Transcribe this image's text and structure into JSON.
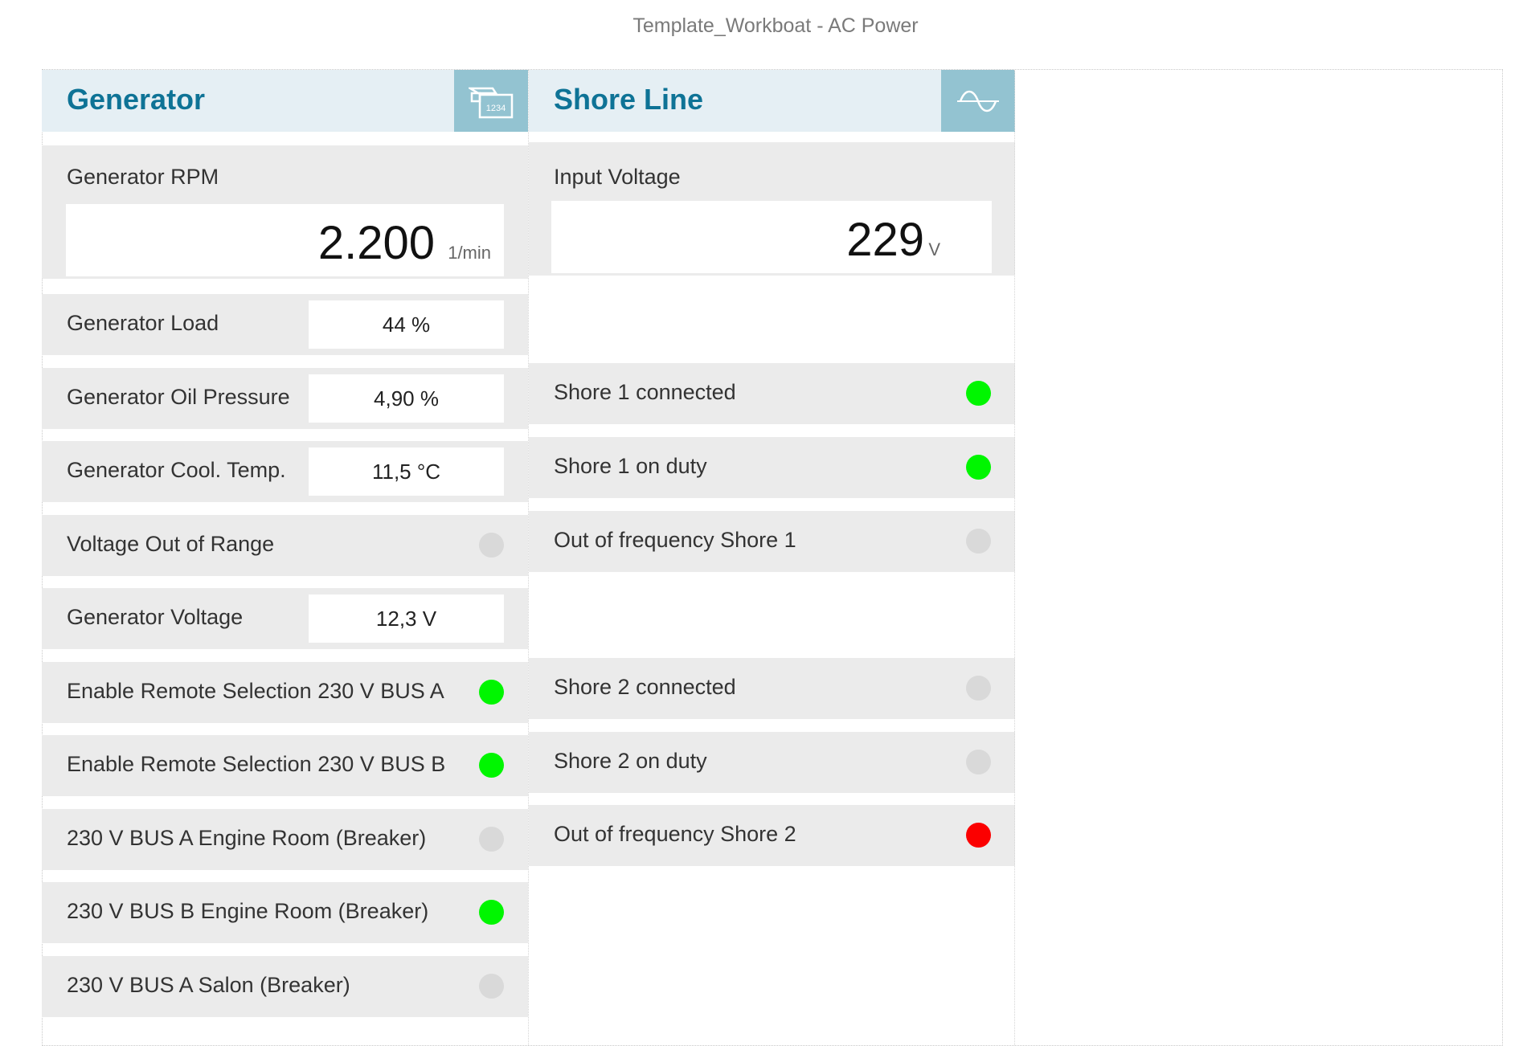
{
  "window": {
    "title": "Template_Workboat - AC Power"
  },
  "colors": {
    "header_bg": "#e5eff4",
    "title_text": "#0e7396",
    "icon_bg": "#93c3d1",
    "row_bg": "#ebebeb",
    "led_on": "#00f600",
    "led_off": "#d9d9d9",
    "led_alarm": "#fb0000"
  },
  "generator": {
    "title": "Generator",
    "icon": "generator-display-icon",
    "icon_text": "1234",
    "rpm": {
      "label": "Generator RPM",
      "value": "2.200",
      "unit": "1/min"
    },
    "load": {
      "label": "Generator Load",
      "value": "44 %"
    },
    "oil_pressure": {
      "label": "Generator Oil Pressure",
      "value": "4,90 %"
    },
    "cool_temp": {
      "label": "Generator Cool. Temp.",
      "value": "11,5 °C"
    },
    "voltage_out_of_range": {
      "label": "Voltage Out of Range",
      "state": "off"
    },
    "voltage": {
      "label": "Generator Voltage",
      "value": "12,3 V"
    },
    "enable_bus_a": {
      "label": "Enable Remote Selection 230 V BUS A",
      "state": "on"
    },
    "enable_bus_b": {
      "label": "Enable Remote Selection 230 V BUS B",
      "state": "on"
    },
    "bus_a_engine_room": {
      "label": "230 V BUS A Engine Room (Breaker)",
      "state": "off"
    },
    "bus_b_engine_room": {
      "label": "230 V BUS B Engine Room (Breaker)",
      "state": "on"
    },
    "bus_a_salon": {
      "label": "230 V BUS A Salon (Breaker)",
      "state": "off"
    }
  },
  "shore": {
    "title": "Shore Line",
    "icon": "sine-wave-icon",
    "input_voltage": {
      "label": "Input Voltage",
      "value": "229",
      "unit": "V"
    },
    "shore1_connected": {
      "label": "Shore 1 connected",
      "state": "on"
    },
    "shore1_on_duty": {
      "label": "Shore 1 on duty",
      "state": "on"
    },
    "shore1_out_of_freq": {
      "label": "Out of frequency Shore 1",
      "state": "off"
    },
    "shore2_connected": {
      "label": "Shore 2 connected",
      "state": "off"
    },
    "shore2_on_duty": {
      "label": "Shore 2 on duty",
      "state": "off"
    },
    "shore2_out_of_freq": {
      "label": "Out of frequency Shore 2",
      "state": "alarm"
    }
  }
}
